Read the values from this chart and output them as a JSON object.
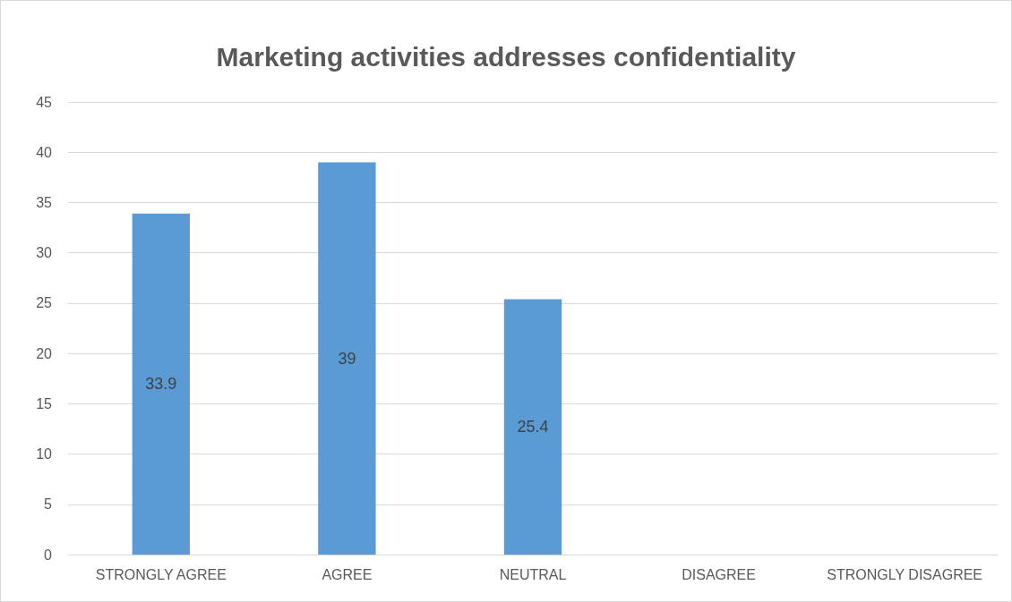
{
  "chart_data": {
    "type": "bar",
    "title": "Marketing activities addresses confidentiality",
    "categories": [
      "STRONGLY AGREE",
      "AGREE",
      "NEUTRAL",
      "DISAGREE",
      "STRONGLY DISAGREE"
    ],
    "values": [
      33.9,
      39,
      25.4,
      0,
      0
    ],
    "value_labels": [
      "33.9",
      "39",
      "25.4",
      null,
      null
    ],
    "color": "#5b9bd5",
    "ylim": [
      0,
      45
    ],
    "yticks": [
      0,
      5,
      10,
      15,
      20,
      25,
      30,
      35,
      40,
      45
    ],
    "grid": "y"
  }
}
